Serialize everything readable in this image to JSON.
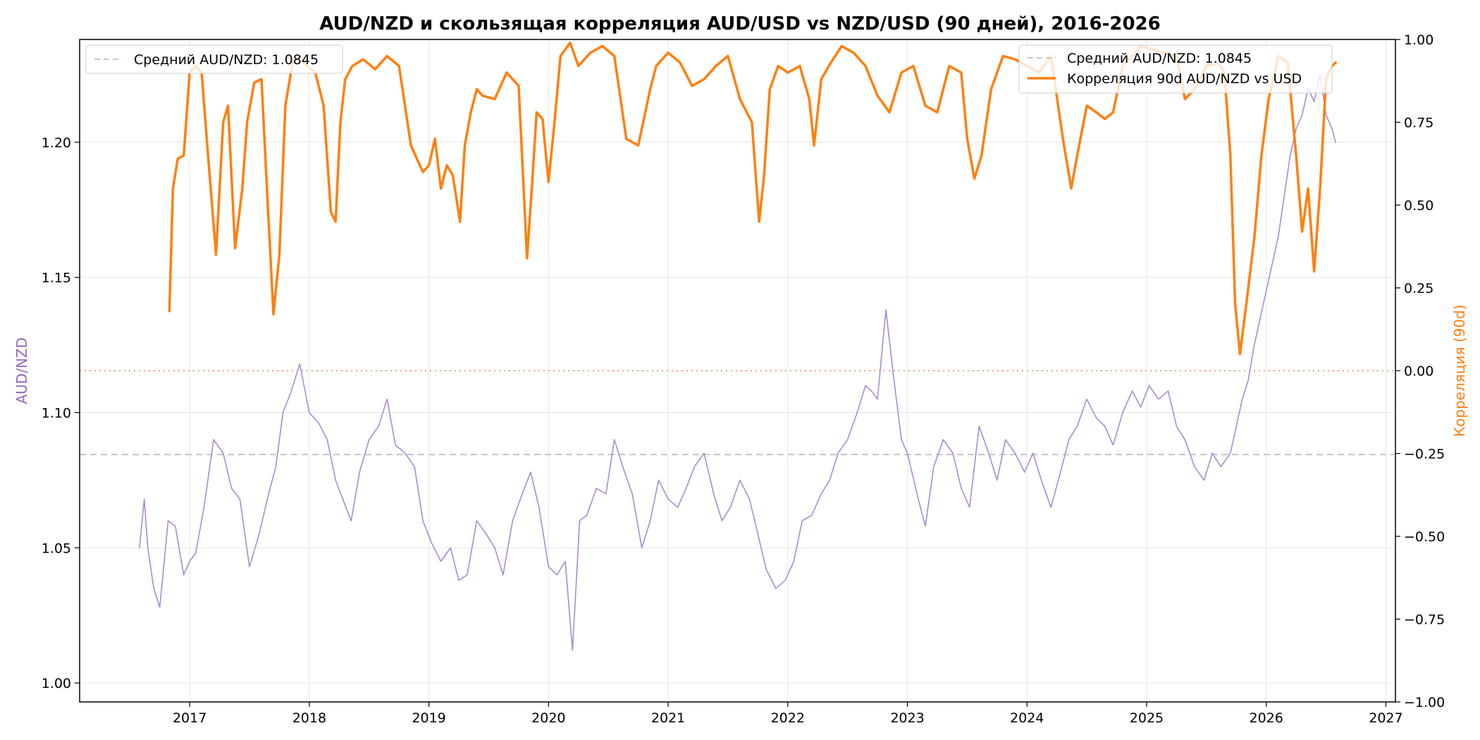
{
  "chart_data": {
    "type": "line",
    "title": "AUD/NZD и скользящая корреляция AUD/USD vs NZD/USD (90 дней), 2016-2026",
    "xlabel": "",
    "ylabel_left": "AUD/NZD",
    "ylabel_right": "Корреляция (90d)",
    "xlim": [
      2016.08,
      2027.08
    ],
    "ylim_left": [
      0.993,
      1.238
    ],
    "ylim_right": [
      -1.0,
      1.0
    ],
    "x_ticks": [
      "2017",
      "2018",
      "2019",
      "2020",
      "2021",
      "2022",
      "2023",
      "2024",
      "2025",
      "2026",
      "2027"
    ],
    "y_ticks_left": [
      "1.00",
      "1.05",
      "1.10",
      "1.15",
      "1.20"
    ],
    "y_ticks_right": [
      "−1.00",
      "−0.75",
      "−0.50",
      "−0.25",
      "0.00",
      "0.25",
      "0.50",
      "0.75",
      "1.00"
    ],
    "grid": true,
    "legend_left": {
      "placement": "upper-left",
      "entries": [
        "Средний AUD/NZD: 1.0845"
      ]
    },
    "legend_right": {
      "placement": "upper-right",
      "entries": [
        "Средний AUD/NZD: 1.0845",
        "Корреляция 90d AUD/NZD vs USD"
      ]
    },
    "reference_lines": [
      {
        "name": "Средний AUD/NZD: 1.0845",
        "axis": "left",
        "value": 1.0845,
        "style": "dashed",
        "color": "#c8c8c8"
      },
      {
        "name": "zero",
        "axis": "right",
        "value": 0.0,
        "style": "dotted",
        "color": "#f4a582"
      }
    ],
    "series": [
      {
        "name": "AUD/NZD",
        "axis": "left",
        "color": "#a98bd4",
        "x": [
          2016.58,
          2016.62,
          2016.65,
          2016.7,
          2016.75,
          2016.82,
          2016.88,
          2016.95,
          2017.0,
          2017.05,
          2017.12,
          2017.2,
          2017.28,
          2017.35,
          2017.42,
          2017.5,
          2017.58,
          2017.66,
          2017.72,
          2017.78,
          2017.85,
          2017.92,
          2018.0,
          2018.08,
          2018.15,
          2018.22,
          2018.28,
          2018.35,
          2018.42,
          2018.5,
          2018.58,
          2018.65,
          2018.72,
          2018.8,
          2018.88,
          2018.95,
          2019.02,
          2019.1,
          2019.18,
          2019.25,
          2019.32,
          2019.4,
          2019.48,
          2019.55,
          2019.62,
          2019.7,
          2019.78,
          2019.85,
          2019.92,
          2020.0,
          2020.07,
          2020.14,
          2020.2,
          2020.26,
          2020.32,
          2020.4,
          2020.48,
          2020.55,
          2020.62,
          2020.7,
          2020.78,
          2020.85,
          2020.92,
          2021.0,
          2021.08,
          2021.15,
          2021.22,
          2021.3,
          2021.38,
          2021.45,
          2021.52,
          2021.6,
          2021.68,
          2021.75,
          2021.82,
          2021.9,
          2021.98,
          2022.05,
          2022.12,
          2022.2,
          2022.28,
          2022.35,
          2022.42,
          2022.5,
          2022.58,
          2022.65,
          2022.7,
          2022.75,
          2022.82,
          2022.88,
          2022.95,
          2023.0,
          2023.08,
          2023.15,
          2023.22,
          2023.3,
          2023.38,
          2023.45,
          2023.52,
          2023.6,
          2023.68,
          2023.75,
          2023.82,
          2023.9,
          2023.98,
          2024.05,
          2024.12,
          2024.2,
          2024.28,
          2024.35,
          2024.42,
          2024.5,
          2024.58,
          2024.65,
          2024.72,
          2024.8,
          2024.88,
          2024.95,
          2025.02,
          2025.1,
          2025.18,
          2025.25,
          2025.32,
          2025.4,
          2025.48,
          2025.55,
          2025.62,
          2025.7,
          2025.75,
          2025.8,
          2025.85,
          2025.9,
          2025.95,
          2026.0,
          2026.05,
          2026.1,
          2026.15,
          2026.2,
          2026.25,
          2026.3,
          2026.35,
          2026.4,
          2026.45,
          2026.5,
          2026.55,
          2026.58
        ],
        "y": [
          1.05,
          1.068,
          1.05,
          1.035,
          1.028,
          1.06,
          1.058,
          1.04,
          1.045,
          1.048,
          1.065,
          1.09,
          1.085,
          1.072,
          1.068,
          1.043,
          1.055,
          1.07,
          1.08,
          1.1,
          1.108,
          1.118,
          1.1,
          1.096,
          1.09,
          1.075,
          1.068,
          1.06,
          1.078,
          1.09,
          1.095,
          1.105,
          1.088,
          1.085,
          1.08,
          1.06,
          1.052,
          1.045,
          1.05,
          1.038,
          1.04,
          1.06,
          1.055,
          1.05,
          1.04,
          1.06,
          1.07,
          1.078,
          1.065,
          1.043,
          1.04,
          1.045,
          1.012,
          1.06,
          1.062,
          1.072,
          1.07,
          1.09,
          1.08,
          1.07,
          1.05,
          1.06,
          1.075,
          1.068,
          1.065,
          1.072,
          1.08,
          1.085,
          1.07,
          1.06,
          1.065,
          1.075,
          1.068,
          1.055,
          1.042,
          1.035,
          1.038,
          1.045,
          1.06,
          1.062,
          1.07,
          1.075,
          1.085,
          1.09,
          1.1,
          1.11,
          1.108,
          1.105,
          1.138,
          1.115,
          1.09,
          1.085,
          1.07,
          1.058,
          1.08,
          1.09,
          1.085,
          1.072,
          1.065,
          1.095,
          1.085,
          1.075,
          1.09,
          1.085,
          1.078,
          1.085,
          1.075,
          1.065,
          1.078,
          1.09,
          1.095,
          1.105,
          1.098,
          1.095,
          1.088,
          1.1,
          1.108,
          1.102,
          1.11,
          1.105,
          1.108,
          1.095,
          1.09,
          1.08,
          1.075,
          1.085,
          1.08,
          1.085,
          1.095,
          1.105,
          1.112,
          1.125,
          1.135,
          1.145,
          1.155,
          1.165,
          1.18,
          1.195,
          1.205,
          1.21,
          1.22,
          1.215,
          1.225,
          1.21,
          1.205,
          1.2
        ]
      },
      {
        "name": "Корреляция 90d AUD/NZD vs USD",
        "axis": "right",
        "color": "#ff7f0e",
        "x": [
          2016.83,
          2016.86,
          2016.9,
          2016.95,
          2017.0,
          2017.05,
          2017.1,
          2017.16,
          2017.22,
          2017.28,
          2017.32,
          2017.38,
          2017.44,
          2017.48,
          2017.54,
          2017.6,
          2017.65,
          2017.7,
          2017.75,
          2017.8,
          2017.86,
          2017.92,
          2017.98,
          2018.05,
          2018.12,
          2018.18,
          2018.22,
          2018.26,
          2018.3,
          2018.36,
          2018.45,
          2018.55,
          2018.65,
          2018.75,
          2018.85,
          2018.95,
          2019.0,
          2019.05,
          2019.1,
          2019.15,
          2019.2,
          2019.26,
          2019.3,
          2019.35,
          2019.4,
          2019.45,
          2019.55,
          2019.65,
          2019.75,
          2019.82,
          2019.86,
          2019.9,
          2019.95,
          2020.0,
          2020.05,
          2020.1,
          2020.18,
          2020.25,
          2020.35,
          2020.45,
          2020.55,
          2020.65,
          2020.75,
          2020.85,
          2020.9,
          2021.0,
          2021.1,
          2021.2,
          2021.3,
          2021.4,
          2021.5,
          2021.6,
          2021.7,
          2021.76,
          2021.8,
          2021.85,
          2021.92,
          2022.0,
          2022.1,
          2022.18,
          2022.22,
          2022.28,
          2022.36,
          2022.45,
          2022.55,
          2022.65,
          2022.75,
          2022.85,
          2022.95,
          2023.05,
          2023.15,
          2023.25,
          2023.35,
          2023.45,
          2023.5,
          2023.56,
          2023.62,
          2023.7,
          2023.8,
          2023.9,
          2024.0,
          2024.1,
          2024.2,
          2024.3,
          2024.37,
          2024.42,
          2024.5,
          2024.58,
          2024.65,
          2024.72,
          2024.8,
          2024.88,
          2024.95,
          2025.05,
          2025.15,
          2025.25,
          2025.32,
          2025.4,
          2025.5,
          2025.6,
          2025.65,
          2025.7,
          2025.74,
          2025.78,
          2025.84,
          2025.9,
          2025.96,
          2026.02,
          2026.1,
          2026.18,
          2026.25,
          2026.3,
          2026.35,
          2026.4,
          2026.45,
          2026.5,
          2026.55,
          2026.58
        ],
        "y": [
          0.18,
          0.55,
          0.64,
          0.65,
          0.9,
          0.92,
          0.9,
          0.62,
          0.35,
          0.75,
          0.8,
          0.37,
          0.55,
          0.75,
          0.87,
          0.88,
          0.52,
          0.17,
          0.35,
          0.8,
          0.93,
          0.95,
          0.92,
          0.9,
          0.8,
          0.48,
          0.45,
          0.75,
          0.88,
          0.92,
          0.94,
          0.91,
          0.95,
          0.92,
          0.68,
          0.6,
          0.62,
          0.7,
          0.55,
          0.62,
          0.59,
          0.45,
          0.68,
          0.78,
          0.85,
          0.83,
          0.82,
          0.9,
          0.86,
          0.34,
          0.55,
          0.78,
          0.76,
          0.57,
          0.75,
          0.95,
          0.99,
          0.92,
          0.96,
          0.98,
          0.95,
          0.7,
          0.68,
          0.85,
          0.92,
          0.96,
          0.93,
          0.86,
          0.88,
          0.92,
          0.95,
          0.82,
          0.75,
          0.45,
          0.58,
          0.85,
          0.92,
          0.9,
          0.92,
          0.82,
          0.68,
          0.88,
          0.93,
          0.98,
          0.96,
          0.92,
          0.83,
          0.78,
          0.9,
          0.92,
          0.8,
          0.78,
          0.92,
          0.9,
          0.7,
          0.58,
          0.65,
          0.85,
          0.95,
          0.94,
          0.92,
          0.9,
          0.95,
          0.7,
          0.55,
          0.65,
          0.8,
          0.78,
          0.76,
          0.78,
          0.92,
          0.95,
          0.98,
          0.97,
          0.96,
          0.95,
          0.82,
          0.85,
          0.92,
          0.93,
          0.9,
          0.65,
          0.2,
          0.05,
          0.22,
          0.4,
          0.65,
          0.82,
          0.95,
          0.93,
          0.65,
          0.42,
          0.55,
          0.3,
          0.55,
          0.88,
          0.92,
          0.93
        ]
      }
    ]
  },
  "colors": {
    "audnzd_line": "#a98bd4",
    "correlation_line": "#ff7f0e",
    "mean_line": "#c8c8c8",
    "zero_line": "#f4a582",
    "left_label": "#9467bd",
    "right_label": "#ff7f0e"
  }
}
